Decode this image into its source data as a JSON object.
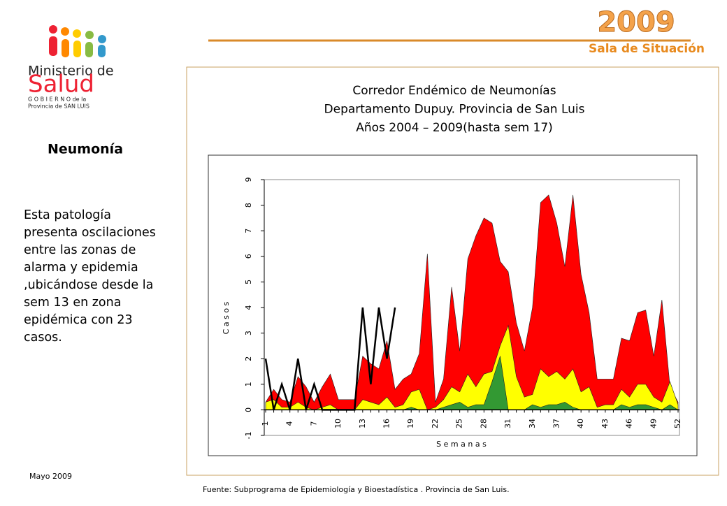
{
  "header": {
    "year": "2009",
    "subtitle": "Sala de Situación"
  },
  "logo": {
    "line1": "Ministerio de",
    "line2": "Salud",
    "line3": "G O B I E R N O de la",
    "line4": "Provincia de SAN LUIS"
  },
  "sidebar": {
    "heading": "Neumonía",
    "text": "Esta patología presenta oscilaciones entre las zonas de alarma y epidemia ,ubicándose desde la sem 13 en zona epidémica con 23 casos.",
    "date": "Mayo 2009"
  },
  "footer": "Fuente: Subprograma de Epidemiología y Bioestadística . Provincia de San Luis.",
  "chart_data": {
    "type": "area",
    "title": [
      "Corredor Endémico de Neumonías",
      "Departamento Dupuy. Provincia de San Luis",
      "Años 2004 – 2009(hasta sem 17)"
    ],
    "xlabel": "S e m a n a s",
    "ylabel": "C a s o s",
    "categories": [
      "1",
      null,
      null,
      "4",
      null,
      null,
      "7",
      null,
      null,
      "10",
      null,
      null,
      "13",
      null,
      null,
      "16",
      null,
      null,
      "19",
      null,
      null,
      "22",
      null,
      null,
      "25",
      null,
      null,
      "28",
      null,
      null,
      "31",
      null,
      null,
      "34",
      null,
      null,
      "37",
      null,
      null,
      "40",
      null,
      null,
      "43",
      null,
      null,
      "46",
      null,
      null,
      "49",
      null,
      null,
      "52"
    ],
    "ylim": [
      -1,
      9
    ],
    "yticks": [
      -1,
      0,
      1,
      2,
      3,
      4,
      5,
      6,
      7,
      8,
      9
    ],
    "series": [
      {
        "color": "#ff0000",
        "values": [
          0.3,
          0.8,
          0.4,
          0.3,
          1.3,
          0.9,
          0.3,
          0.9,
          1.4,
          0.4,
          0.4,
          0.4,
          2.1,
          1.8,
          1.6,
          2.7,
          0.8,
          1.2,
          1.4,
          2.2,
          6.1,
          0.3,
          1.2,
          4.8,
          2.3,
          5.9,
          6.8,
          7.5,
          7.3,
          5.8,
          5.4,
          3.4,
          2.3,
          4.0,
          8.1,
          8.4,
          7.3,
          5.6,
          8.4,
          5.3,
          3.8,
          1.2,
          1.2,
          1.2,
          2.8,
          2.7,
          3.8,
          3.9,
          2.1,
          4.3,
          0.9,
          0.3
        ]
      },
      {
        "color": "#ffff00",
        "values": [
          0.3,
          0.4,
          0.1,
          0.1,
          0.3,
          0.1,
          0.0,
          0.1,
          0.2,
          0.0,
          0.0,
          0.0,
          0.4,
          0.3,
          0.2,
          0.5,
          0.1,
          0.2,
          0.7,
          0.8,
          0.0,
          0.1,
          0.4,
          0.9,
          0.7,
          1.4,
          0.9,
          1.4,
          1.5,
          2.5,
          3.3,
          1.3,
          0.5,
          0.6,
          1.6,
          1.3,
          1.5,
          1.2,
          1.6,
          0.7,
          0.9,
          0.1,
          0.2,
          0.2,
          0.8,
          0.5,
          1.0,
          1.0,
          0.5,
          0.3,
          1.1,
          0.2
        ]
      },
      {
        "color": "#339933",
        "values": [
          0,
          0,
          0,
          0,
          0,
          0,
          0,
          0,
          0,
          0,
          0,
          0,
          0,
          0,
          0,
          0,
          0,
          0,
          0.1,
          0,
          0,
          0,
          0.1,
          0.2,
          0.3,
          0.1,
          0.2,
          0.2,
          1.1,
          2.1,
          0,
          0,
          0,
          0.2,
          0.1,
          0.2,
          0.2,
          0.3,
          0.1,
          0,
          0,
          0,
          0,
          0,
          0.2,
          0.1,
          0.2,
          0.2,
          0.1,
          0,
          0.2,
          0
        ]
      },
      {
        "color": "#000000",
        "values": [
          2,
          0,
          1,
          0,
          2,
          0,
          1,
          0,
          0,
          0,
          0,
          0,
          4,
          1,
          4,
          2,
          4,
          null,
          null,
          null,
          null,
          null,
          null,
          null,
          null,
          null,
          null,
          null,
          null,
          null,
          null,
          null,
          null,
          null,
          null,
          null,
          null,
          null,
          null,
          null,
          null,
          null,
          null,
          null,
          null,
          null,
          null,
          null,
          null,
          null,
          null,
          null
        ]
      }
    ]
  }
}
